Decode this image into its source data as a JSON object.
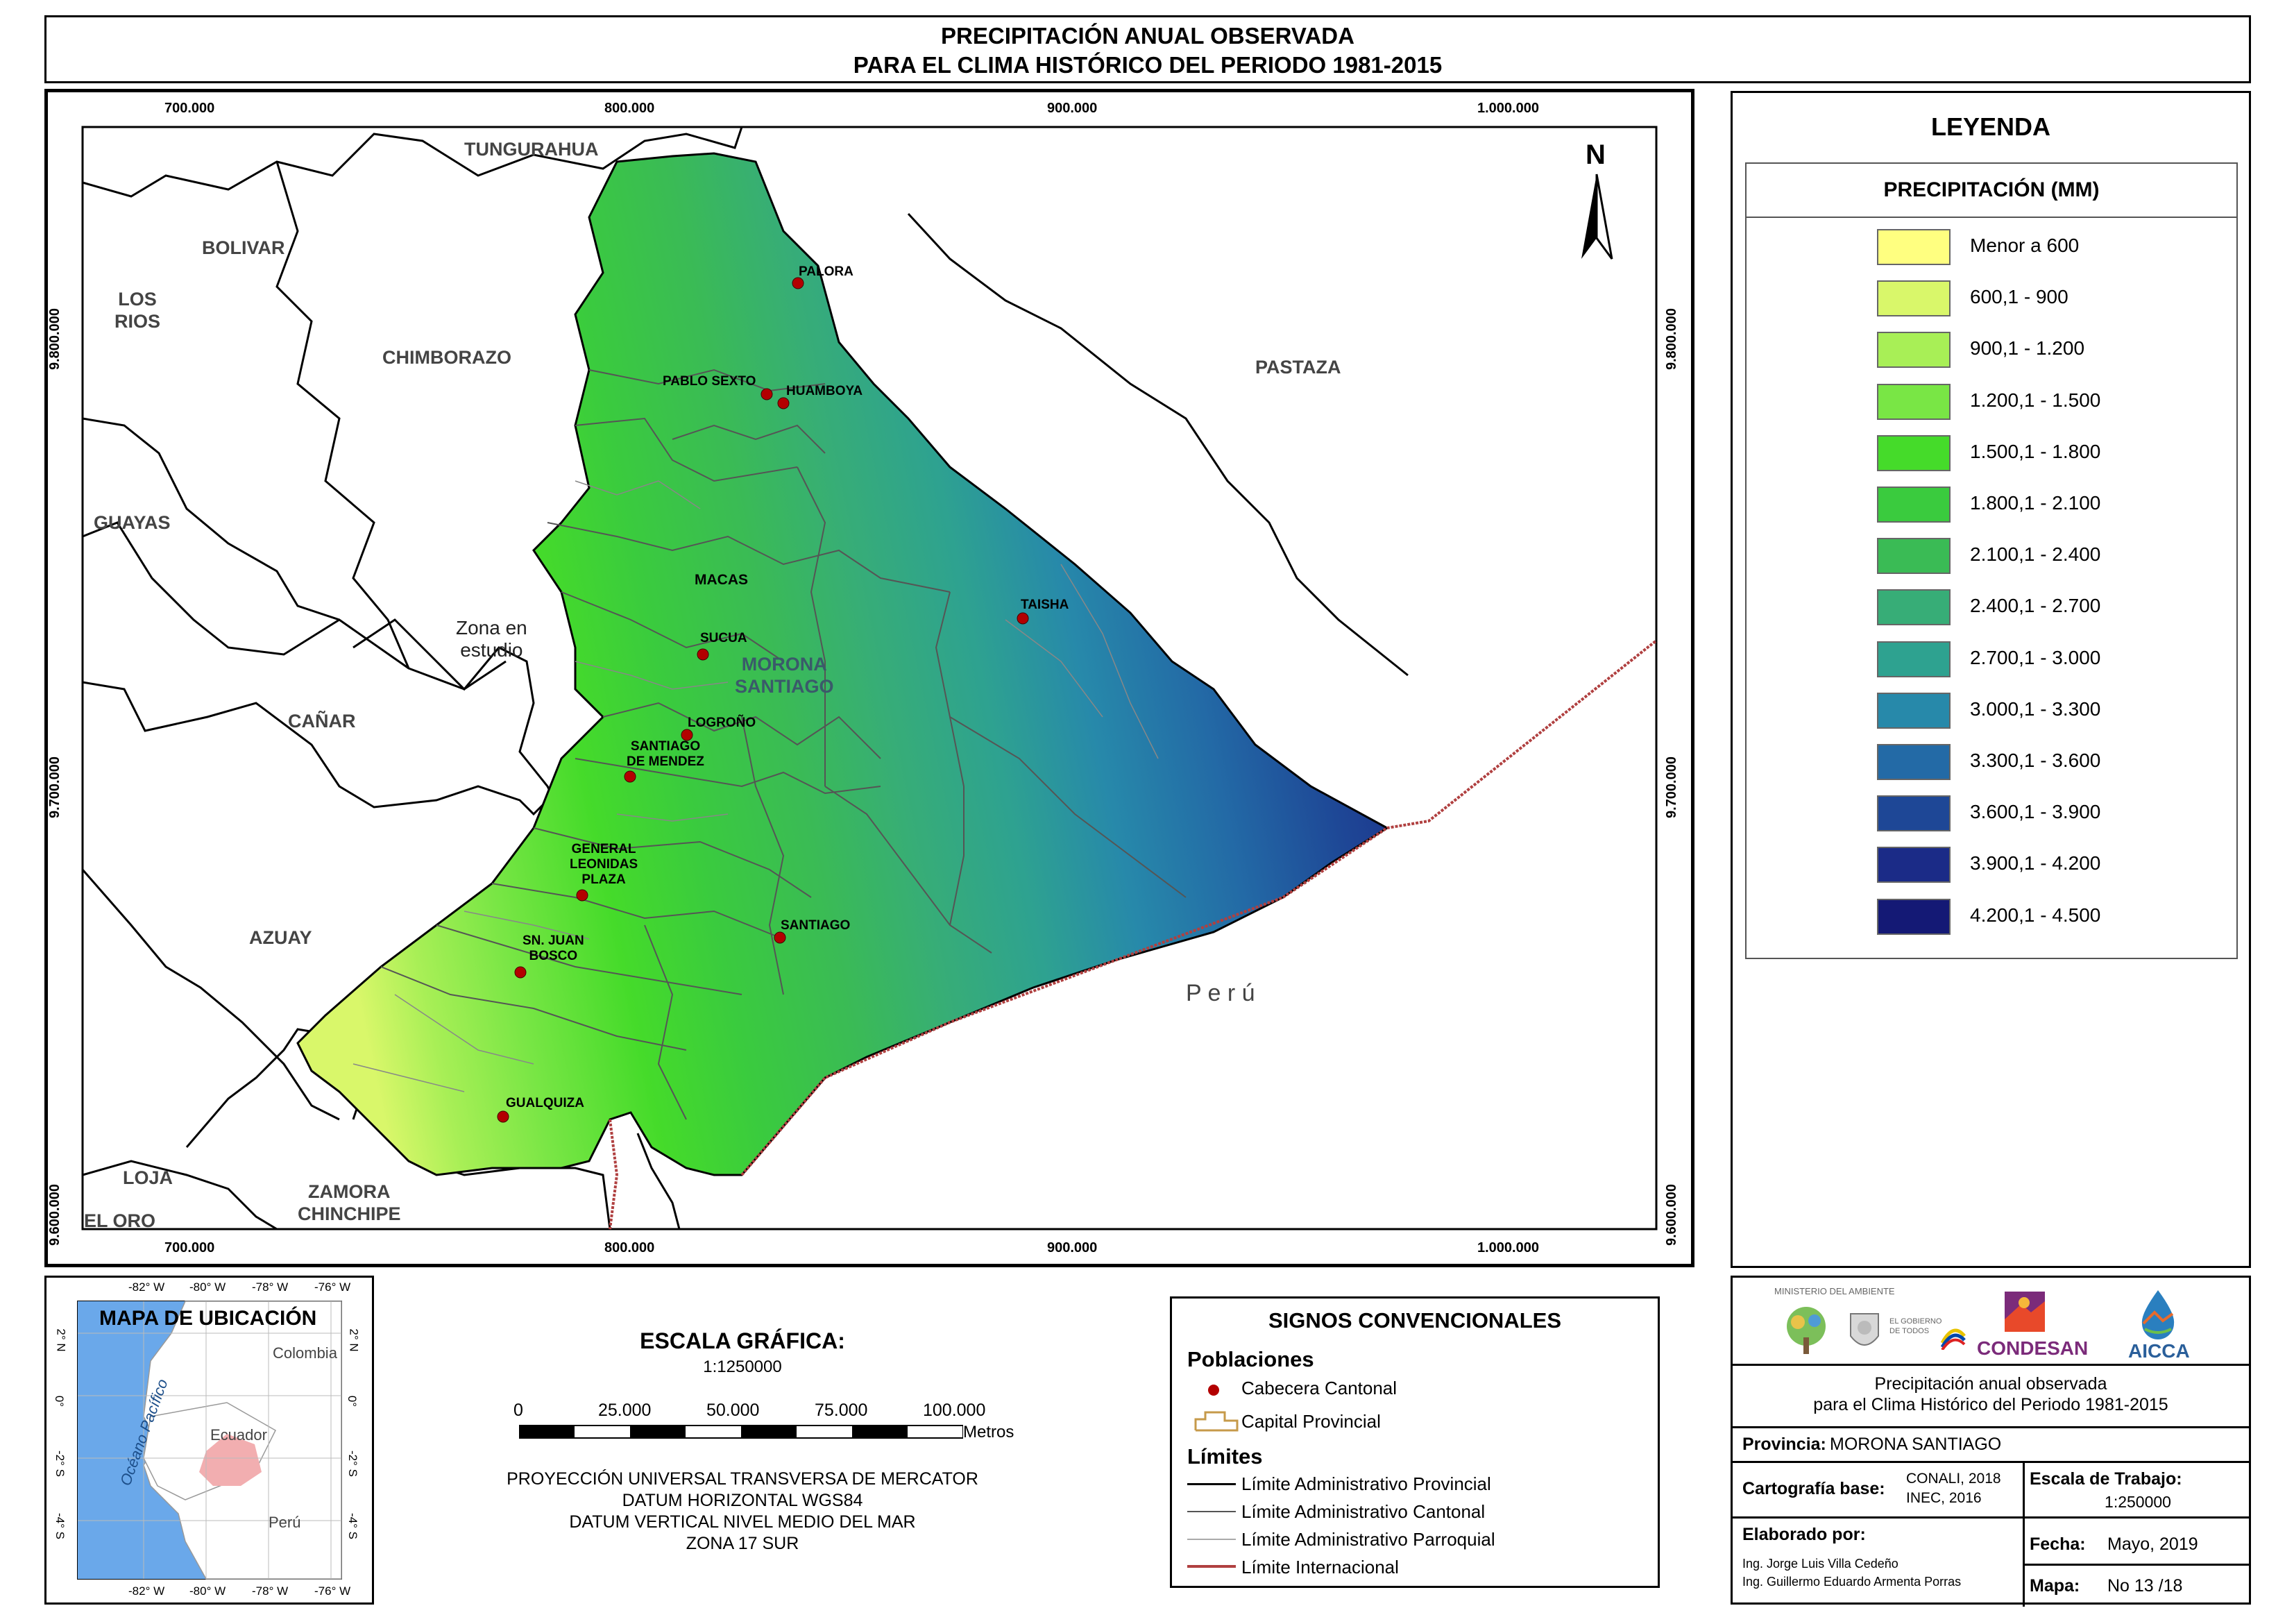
{
  "title": {
    "line1": "PRECIPITACIÓN ANUAL OBSERVADA",
    "line2": "PARA EL CLIMA HISTÓRICO DEL PERIODO 1981-2015"
  },
  "map": {
    "x_ticks": [
      "700.000",
      "800.000",
      "900.000",
      "1.000.000"
    ],
    "y_ticks": [
      "9.800.000",
      "9.700.000",
      "9.600.000"
    ],
    "north_label": "N",
    "regions": {
      "tungurahua": "TUNGURAHUA",
      "bolivar": "BOLIVAR",
      "los_rios": "LOS\nRIOS",
      "chimborazo": "CHIMBORAZO",
      "pastaza": "PASTAZA",
      "guayas": "GUAYAS",
      "zona": "Zona en\nestudio",
      "canar": "CAÑAR",
      "morona": "MORONA\nSANTIAGO",
      "azuay": "AZUAY",
      "peru": "P e r ú",
      "loja": "LOJA",
      "zamora": "ZAMORA\nCHINCHIPE",
      "el_oro": "EL ORO"
    },
    "towns": {
      "palora": "PALORA",
      "pablo_sexto": "PABLO SEXTO",
      "huamboya": "HUAMBOYA",
      "macas": "MACAS",
      "taisha": "TAISHA",
      "sucua": "SUCUA",
      "logrono": "LOGROÑO",
      "santiago_mendez": "SANTIAGO\nDE MENDEZ",
      "general_plaza": "GENERAL\nLEONIDAS\nPLAZA",
      "santiago": "SANTIAGO",
      "sn_juan_bosco": "SN. JUAN\nBOSCO",
      "gualquiza": "GUALQUIZA"
    }
  },
  "legend": {
    "title": "LEYENDA",
    "header": "PRECIPITACIÓN (MM)",
    "classes": [
      {
        "label": "Menor a 600",
        "color": "#ffff80"
      },
      {
        "label": "600,1 - 900",
        "color": "#d9f76a"
      },
      {
        "label": "900,1 - 1.200",
        "color": "#a8ef56"
      },
      {
        "label": "1.200,1 - 1.500",
        "color": "#79e645"
      },
      {
        "label": "1.500,1 - 1.800",
        "color": "#45db2a"
      },
      {
        "label": "1.800,1 - 2.100",
        "color": "#3acb3e"
      },
      {
        "label": "2.100,1 - 2.400",
        "color": "#3abb55"
      },
      {
        "label": "2.400,1 - 2.700",
        "color": "#37ad77"
      },
      {
        "label": "2.700,1 - 3.000",
        "color": "#2ea290"
      },
      {
        "label": "3.000,1 - 3.300",
        "color": "#2789aa"
      },
      {
        "label": "3.300,1 - 3.600",
        "color": "#236aa6"
      },
      {
        "label": "3.600,1 - 3.900",
        "color": "#1e4796"
      },
      {
        "label": "3.900,1 - 4.200",
        "color": "#1b2b87"
      },
      {
        "label": "4.200,1 - 4.500",
        "color": "#141975"
      }
    ]
  },
  "location_map": {
    "title": "MAPA DE UBICACIÓN",
    "lon_ticks": [
      "-82° W",
      "-80° W",
      "-78° W",
      "-76° W"
    ],
    "lat_ticks": [
      "2° N",
      "0°",
      "-2° S",
      "-4° S"
    ],
    "ocean": "Océano Pacífico",
    "colombia": "Colombia",
    "ecuador": "Ecuador",
    "peru": "Perú"
  },
  "scale": {
    "title": "ESCALA GRÁFICA:",
    "ratio": "1:1250000",
    "ticks": [
      "0",
      "25.000",
      "50.000",
      "75.000",
      "100.000"
    ],
    "unit": "Metros",
    "projection": [
      "PROYECCIÓN UNIVERSAL TRANSVERSA DE MERCATOR",
      "DATUM HORIZONTAL WGS84",
      "DATUM VERTICAL NIVEL MEDIO DEL MAR",
      "ZONA 17 SUR"
    ]
  },
  "signos": {
    "title": "SIGNOS CONVENCIONALES",
    "poblaciones": "Poblaciones",
    "cabecera": "Cabecera Cantonal",
    "capital": "Capital Provincial",
    "limites": "Límites",
    "provincial": "Límite Administrativo Provincial",
    "cantonal": "Límite Administrativo Cantonal",
    "parroquial": "Límite Administrativo Parroquial",
    "internacional": "Límite Internacional"
  },
  "info": {
    "ministerio": "MINISTERIO DEL AMBIENTE",
    "gobierno": "EL GOBIERNO DE TODOS",
    "condesan": "CONDESAN",
    "aicca": "AICCA",
    "desc1": "Precipitación anual observada",
    "desc2": "para el Clima Histórico del Periodo 1981-2015",
    "provincia_label": "Provincia:",
    "provincia_value": "MORONA SANTIAGO",
    "cartografia_label": "Cartografía base:",
    "cartografia_value1": "CONALI, 2018",
    "cartografia_value2": "INEC, 2016",
    "escala_label": "Escala de Trabajo:",
    "escala_value": "1:250000",
    "elaborado_label": "Elaborado por:",
    "autor1": "Ing. Jorge Luis Villa Cedeño",
    "autor2": "Ing. Guillermo Eduardo Armenta Porras",
    "fecha_label": "Fecha:",
    "fecha_value": "Mayo, 2019",
    "mapa_label": "Mapa:",
    "mapa_value": "No 13 /18"
  }
}
